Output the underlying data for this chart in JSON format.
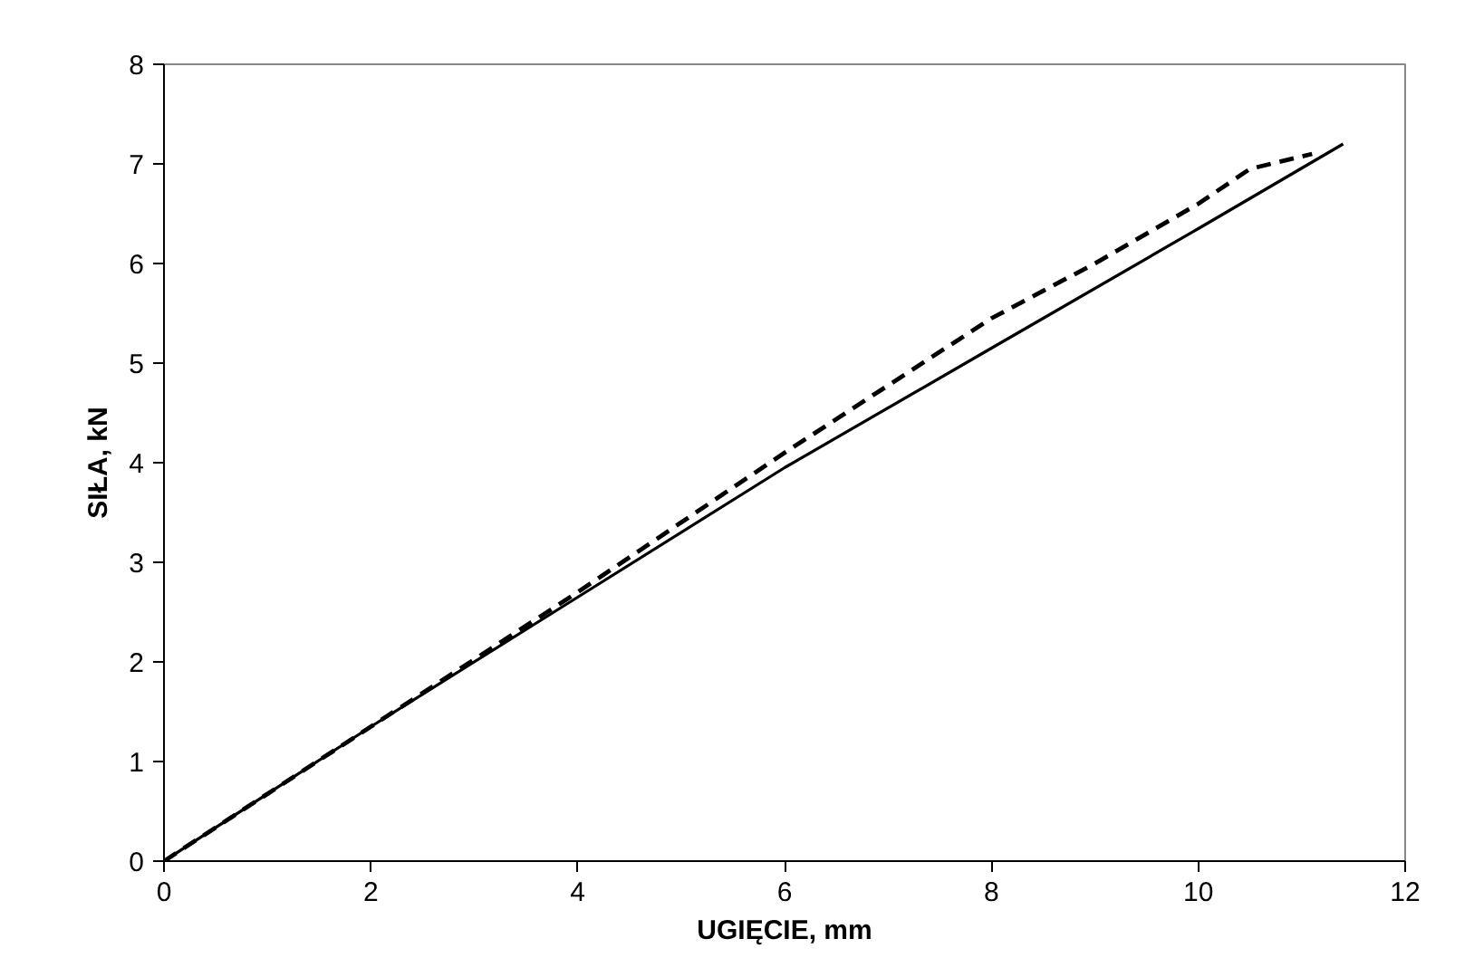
{
  "chart_data": {
    "type": "line",
    "xlabel": "UGIĘCIE, mm",
    "ylabel": "SIŁA, kN",
    "xlim": [
      0,
      12
    ],
    "ylim": [
      0,
      8
    ],
    "xticks": [
      0,
      2,
      4,
      6,
      8,
      10,
      12
    ],
    "yticks": [
      0,
      1,
      2,
      3,
      4,
      5,
      6,
      7,
      8
    ],
    "grid": false,
    "series": [
      {
        "color": "#000000",
        "line_style": "solid",
        "x": [
          0,
          2,
          4,
          6,
          8,
          10,
          11.4
        ],
        "values": [
          0,
          1.35,
          2.65,
          3.95,
          5.15,
          6.35,
          7.2
        ]
      },
      {
        "color": "#000000",
        "line_style": "dashed",
        "x": [
          0,
          2,
          4,
          6,
          8,
          9,
          10,
          10.5,
          11.1
        ],
        "values": [
          0,
          1.35,
          2.7,
          4.1,
          5.45,
          6.0,
          6.6,
          6.95,
          7.1
        ]
      }
    ]
  }
}
